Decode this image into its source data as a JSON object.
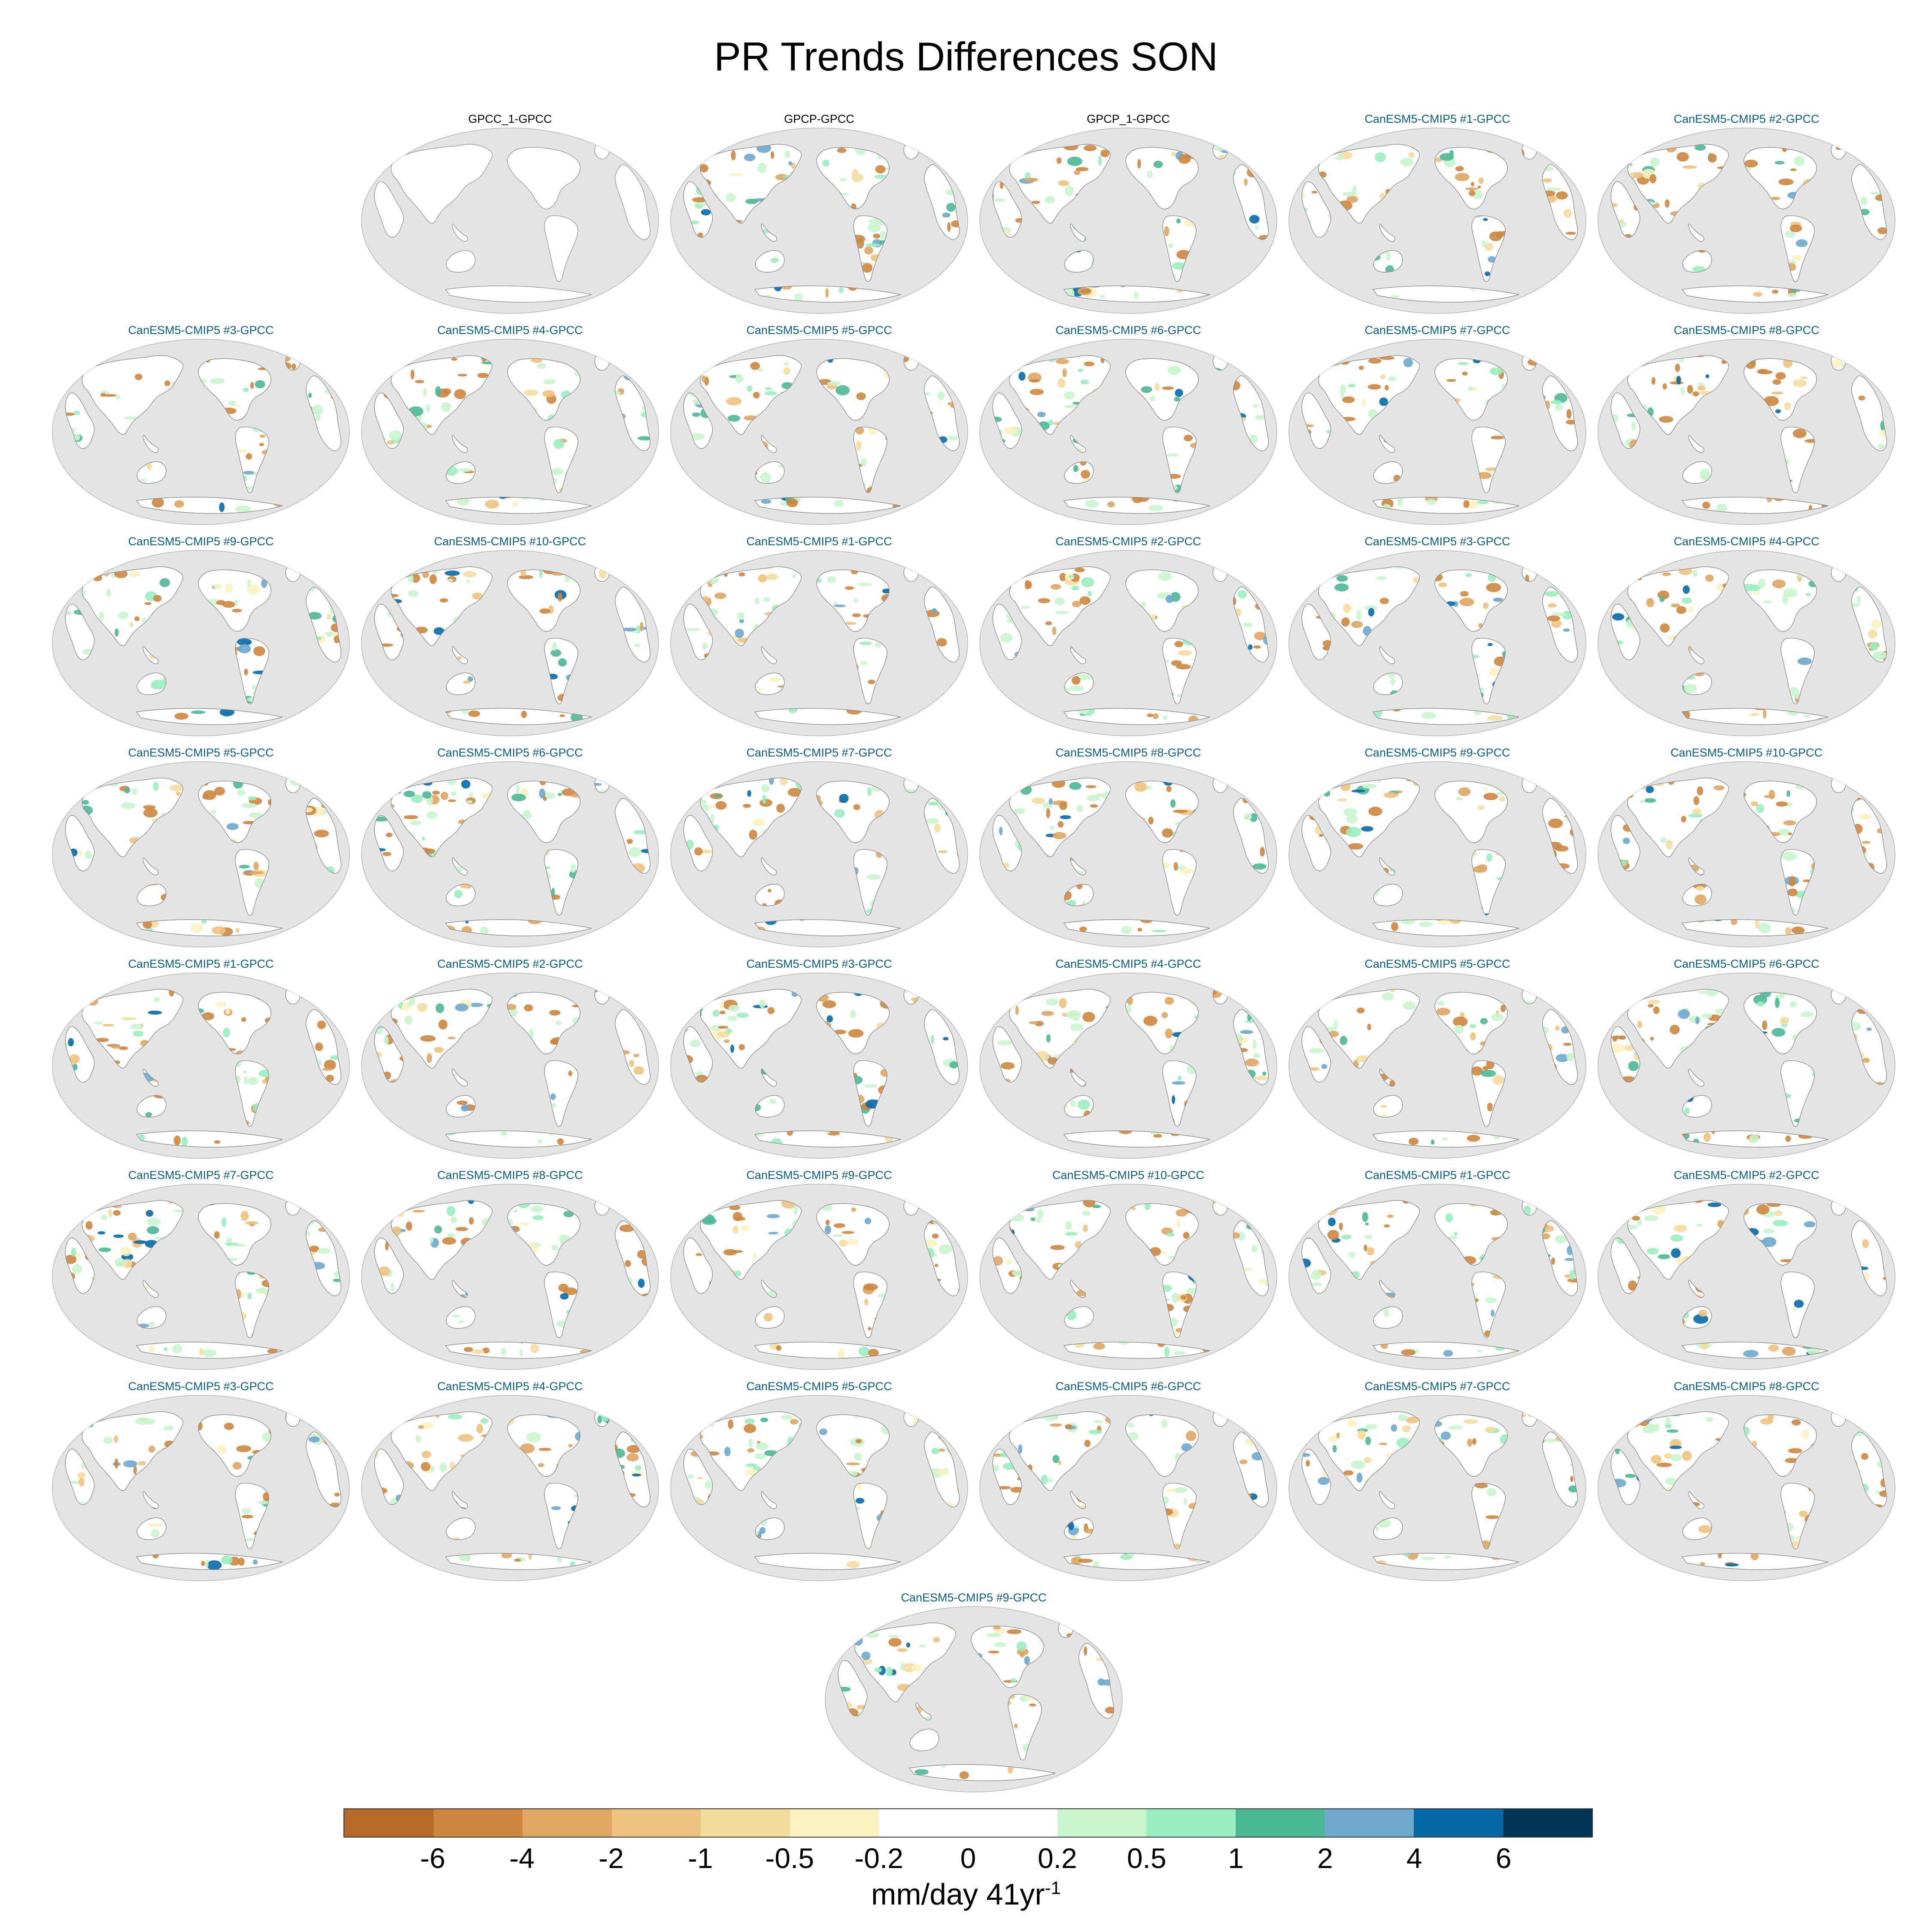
{
  "title": "PR Trends Differences SON",
  "colors": {
    "ocean": "#e4e4e4",
    "land_base": "#ffffff",
    "coast": "#8a8a8a",
    "model_label": "#0a5f83",
    "obs_label": "#000000"
  },
  "panels": [
    {
      "label": "GPCC_1-GPCC",
      "kind": "obs-blank"
    },
    {
      "label": "GPCP-GPCC",
      "kind": "obs"
    },
    {
      "label": "GPCP_1-GPCC",
      "kind": "obs"
    },
    {
      "label": "CanESM5-CMIP5 #1-GPCC",
      "kind": "model"
    },
    {
      "label": "CanESM5-CMIP5 #2-GPCC",
      "kind": "model"
    },
    {
      "label": "CanESM5-CMIP5 #3-GPCC",
      "kind": "model"
    },
    {
      "label": "CanESM5-CMIP5 #4-GPCC",
      "kind": "model"
    },
    {
      "label": "CanESM5-CMIP5 #5-GPCC",
      "kind": "model"
    },
    {
      "label": "CanESM5-CMIP5 #6-GPCC",
      "kind": "model"
    },
    {
      "label": "CanESM5-CMIP5 #7-GPCC",
      "kind": "model"
    },
    {
      "label": "CanESM5-CMIP5 #8-GPCC",
      "kind": "model"
    },
    {
      "label": "CanESM5-CMIP5 #9-GPCC",
      "kind": "model"
    },
    {
      "label": "CanESM5-CMIP5 #10-GPCC",
      "kind": "model"
    },
    {
      "label": "CanESM5-CMIP5 #1-GPCC",
      "kind": "model"
    },
    {
      "label": "CanESM5-CMIP5 #2-GPCC",
      "kind": "model"
    },
    {
      "label": "CanESM5-CMIP5 #3-GPCC",
      "kind": "model"
    },
    {
      "label": "CanESM5-CMIP5 #4-GPCC",
      "kind": "model"
    },
    {
      "label": "CanESM5-CMIP5 #5-GPCC",
      "kind": "model"
    },
    {
      "label": "CanESM5-CMIP5 #6-GPCC",
      "kind": "model"
    },
    {
      "label": "CanESM5-CMIP5 #7-GPCC",
      "kind": "model"
    },
    {
      "label": "CanESM5-CMIP5 #8-GPCC",
      "kind": "model"
    },
    {
      "label": "CanESM5-CMIP5 #9-GPCC",
      "kind": "model"
    },
    {
      "label": "CanESM5-CMIP5 #10-GPCC",
      "kind": "model"
    },
    {
      "label": "CanESM5-CMIP5 #1-GPCC",
      "kind": "model"
    },
    {
      "label": "CanESM5-CMIP5 #2-GPCC",
      "kind": "model"
    },
    {
      "label": "CanESM5-CMIP5 #3-GPCC",
      "kind": "model"
    },
    {
      "label": "CanESM5-CMIP5 #4-GPCC",
      "kind": "model"
    },
    {
      "label": "CanESM5-CMIP5 #5-GPCC",
      "kind": "model"
    },
    {
      "label": "CanESM5-CMIP5 #6-GPCC",
      "kind": "model"
    },
    {
      "label": "CanESM5-CMIP5 #7-GPCC",
      "kind": "model"
    },
    {
      "label": "CanESM5-CMIP5 #8-GPCC",
      "kind": "model"
    },
    {
      "label": "CanESM5-CMIP5 #9-GPCC",
      "kind": "model"
    },
    {
      "label": "CanESM5-CMIP5 #10-GPCC",
      "kind": "model"
    },
    {
      "label": "CanESM5-CMIP5 #1-GPCC",
      "kind": "model"
    },
    {
      "label": "CanESM5-CMIP5 #2-GPCC",
      "kind": "model"
    },
    {
      "label": "CanESM5-CMIP5 #3-GPCC",
      "kind": "model"
    },
    {
      "label": "CanESM5-CMIP5 #4-GPCC",
      "kind": "model"
    },
    {
      "label": "CanESM5-CMIP5 #5-GPCC",
      "kind": "model"
    },
    {
      "label": "CanESM5-CMIP5 #6-GPCC",
      "kind": "model"
    },
    {
      "label": "CanESM5-CMIP5 #7-GPCC",
      "kind": "model"
    },
    {
      "label": "CanESM5-CMIP5 #8-GPCC",
      "kind": "model"
    },
    {
      "label": "CanESM5-CMIP5 #9-GPCC",
      "kind": "model"
    }
  ],
  "colorbar": {
    "colors": [
      "#b5692a",
      "#cc863f",
      "#dfa664",
      "#efc27f",
      "#f3dd9e",
      "#fbf1c0",
      "#ffffff",
      "#ffffff",
      "#c9f5cd",
      "#9aedbd",
      "#4cb896",
      "#6ea8cc",
      "#0569a8",
      "#003555"
    ],
    "ticks": [
      "-6",
      "-4",
      "-2",
      "-1",
      "-0.5",
      "-0.2",
      "0",
      "0.2",
      "0.5",
      "1",
      "2",
      "4",
      "6"
    ],
    "units": "mm/day 41yr",
    "units_exp": "-1"
  }
}
